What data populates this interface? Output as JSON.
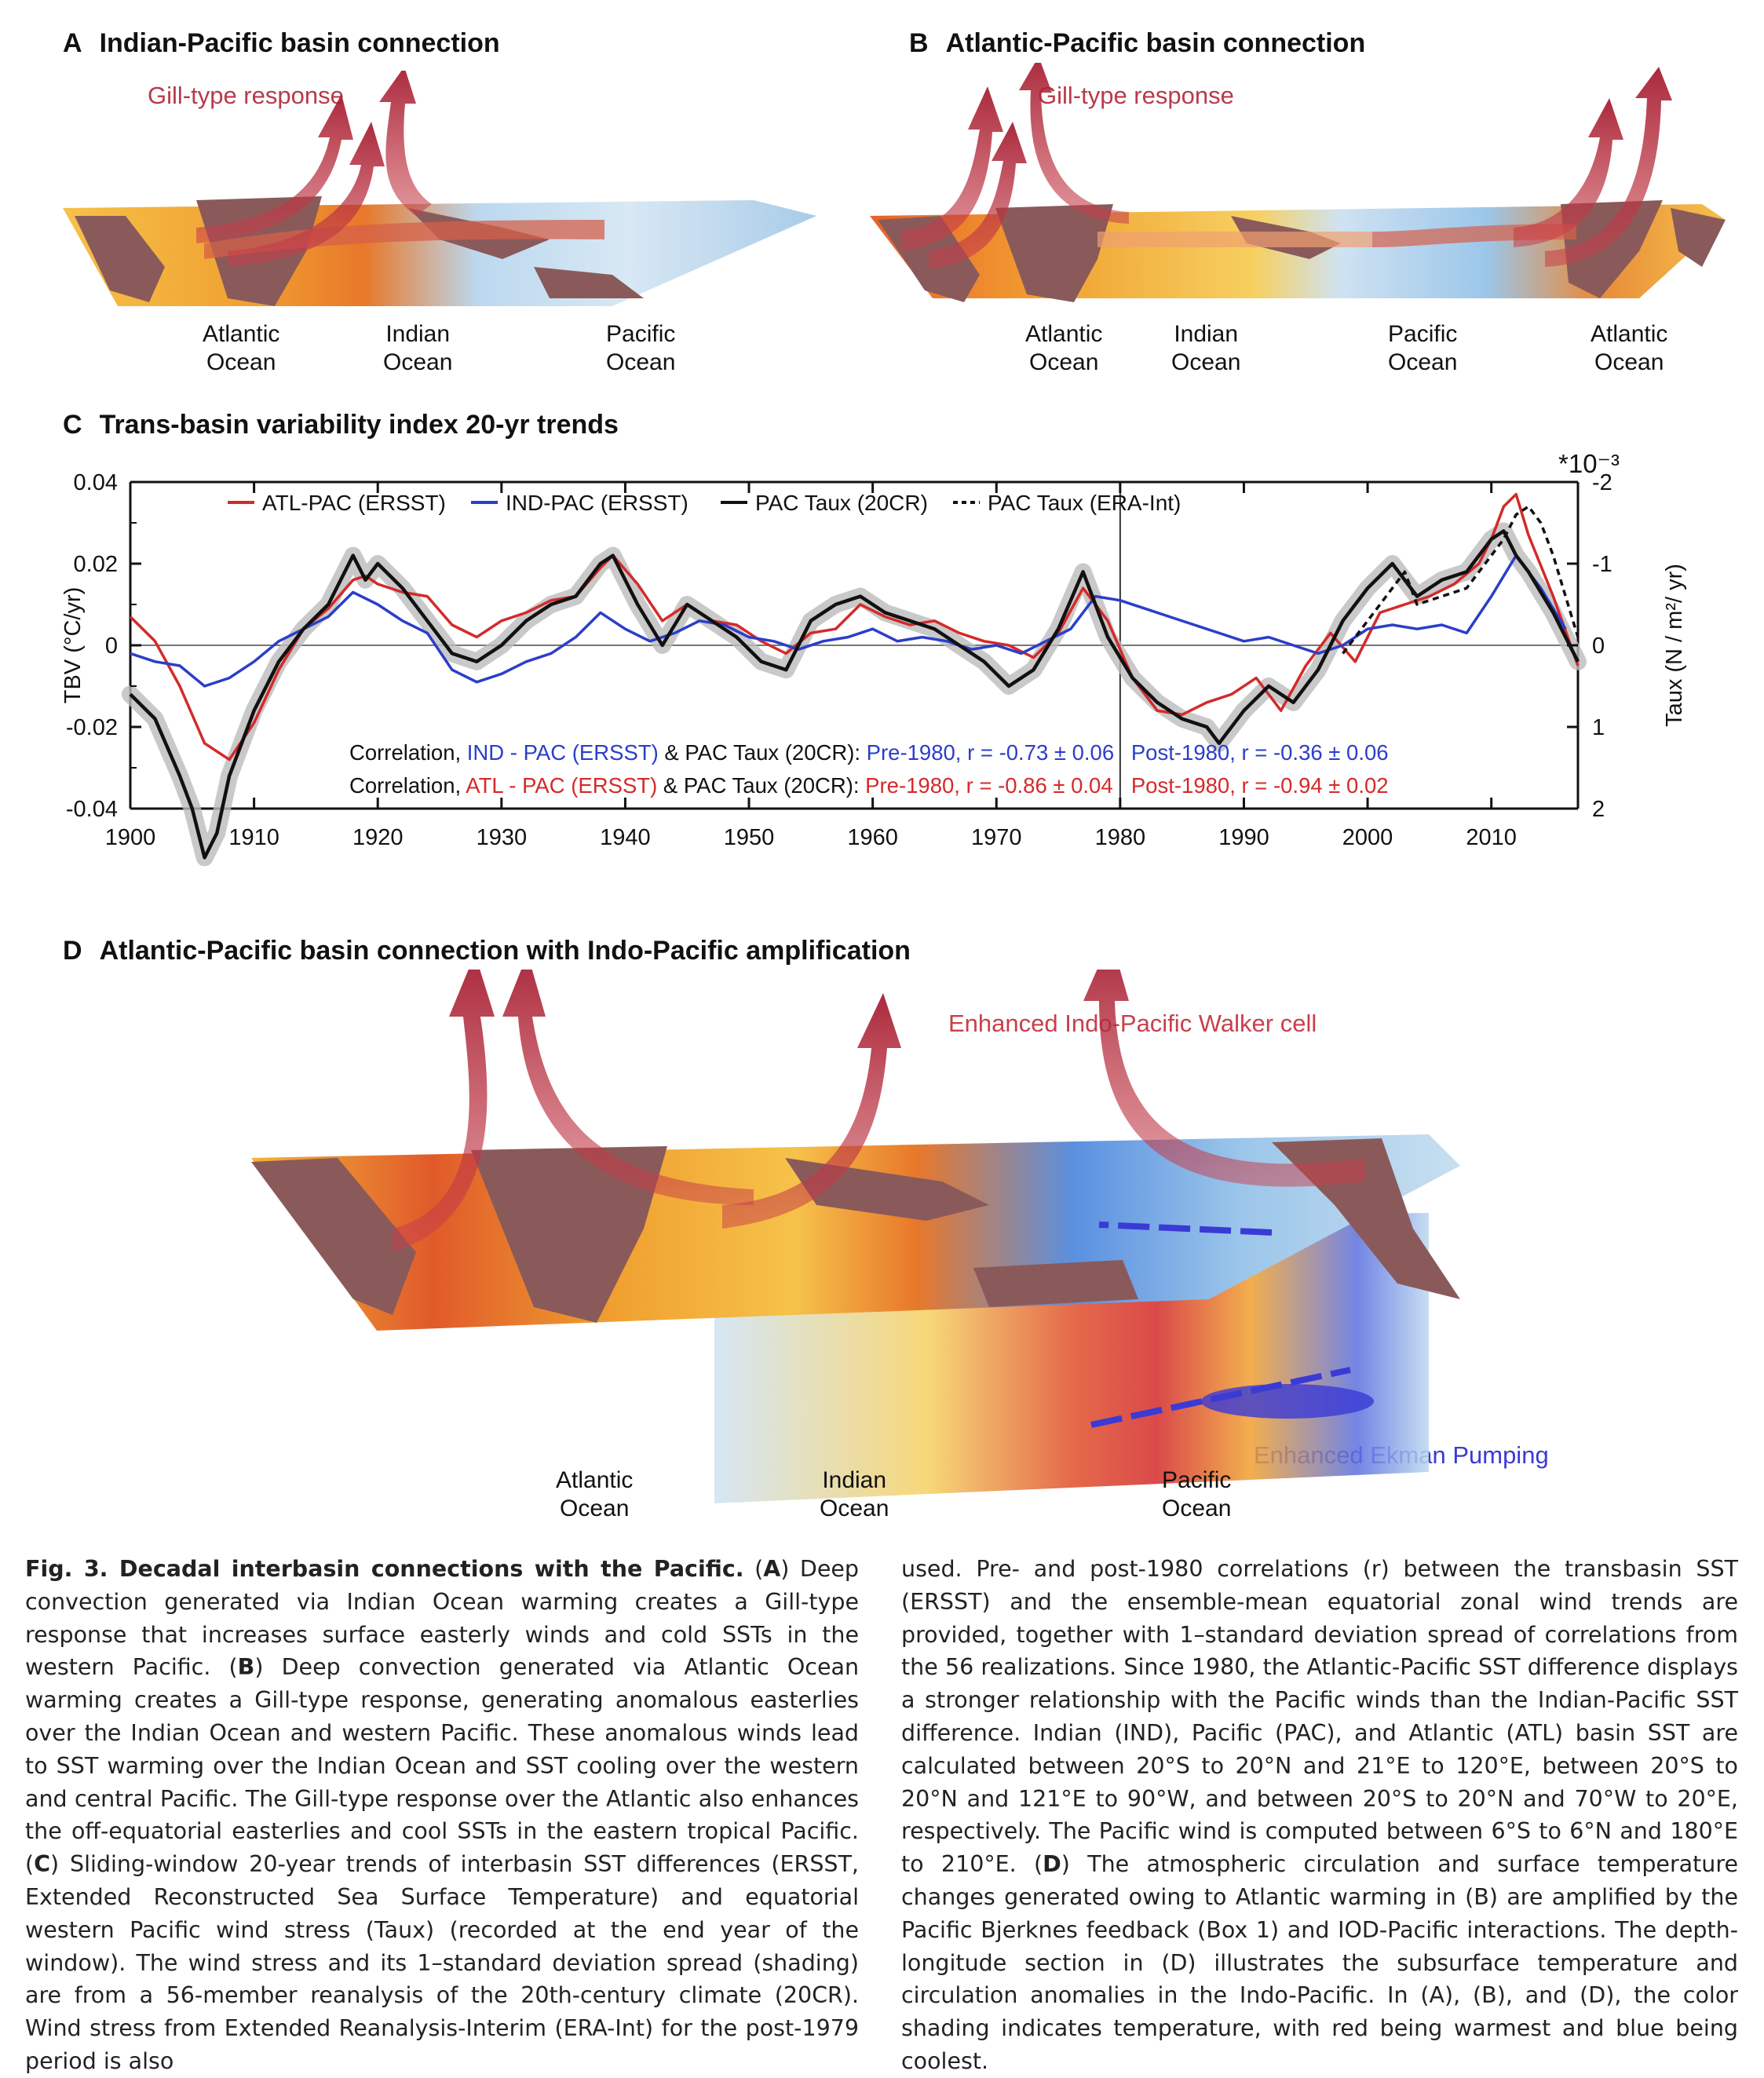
{
  "panels": {
    "A": {
      "letter": "A",
      "title": "Indian-Pacific basin connection",
      "gill": "Gill-type response",
      "oceans": [
        "Atlantic\nOcean",
        "Indian\nOcean",
        "Pacific\nOcean"
      ]
    },
    "B": {
      "letter": "B",
      "title": "Atlantic-Pacific basin connection",
      "gill": "Gill-type response",
      "oceans": [
        "Atlantic\nOcean",
        "Indian\nOcean",
        "Pacific\nOcean",
        "Atlantic\nOcean"
      ]
    },
    "C": {
      "letter": "C",
      "title": "Trans-basin variability index 20-yr trends"
    },
    "D": {
      "letter": "D",
      "title": "Atlantic-Pacific basin connection with Indo-Pacific amplification",
      "walker": "Enhanced Indo-Pacific Walker cell",
      "ekman": "Enhanced Ekman Pumping",
      "oceans": [
        "Atlantic\nOcean",
        "Indian\nOcean",
        "Pacific\nOcean"
      ]
    }
  },
  "chart_data": {
    "type": "line",
    "xlabel": "",
    "ylabel": "TBV (°C/yr)",
    "ylabel_right": "Taux (N / m²/ yr)",
    "right_scale_note": "*10⁻³",
    "xlim": [
      1900,
      2017
    ],
    "ylim": [
      -0.04,
      0.04
    ],
    "ylim_right": [
      2,
      -2
    ],
    "xticks": [
      1900,
      1910,
      1920,
      1930,
      1940,
      1950,
      1960,
      1970,
      1980,
      1990,
      2000,
      2010
    ],
    "yticks": [
      -0.04,
      -0.02,
      0,
      0.02,
      0.04
    ],
    "yticklabels": [
      "-0.04",
      "-0.02",
      "0",
      "0.02",
      "0.04"
    ],
    "yticks_right": [
      2,
      1,
      0,
      -1,
      -2
    ],
    "yticklabels_right": [
      "2",
      "1",
      "0",
      "-1",
      "-2"
    ],
    "vline": 1980,
    "legend": [
      "ATL-PAC (ERSST)",
      "IND-PAC (ERSST)",
      "PAC Taux (20CR)",
      "PAC Taux (ERA-Int)"
    ],
    "series": [
      {
        "name": "ATL-PAC (ERSST)",
        "color": "#d42a2a",
        "style": "solid",
        "x": [
          1900,
          1902,
          1904,
          1906,
          1907,
          1908,
          1910,
          1912,
          1914,
          1916,
          1918,
          1919,
          1920,
          1922,
          1924,
          1926,
          1928,
          1930,
          1932,
          1934,
          1936,
          1938,
          1939,
          1941,
          1943,
          1945,
          1947,
          1949,
          1951,
          1953,
          1955,
          1957,
          1959,
          1961,
          1963,
          1965,
          1967,
          1969,
          1971,
          1973,
          1975,
          1977,
          1979,
          1981,
          1983,
          1985,
          1987,
          1989,
          1991,
          1993,
          1995,
          1997,
          1999,
          2001,
          2003,
          2005,
          2007,
          2009,
          2010,
          2011,
          2012,
          2013,
          2015,
          2017
        ],
        "y": [
          0.007,
          0.001,
          -0.01,
          -0.024,
          -0.026,
          -0.028,
          -0.019,
          -0.006,
          0.004,
          0.009,
          0.016,
          0.017,
          0.015,
          0.013,
          0.012,
          0.005,
          0.002,
          0.006,
          0.008,
          0.011,
          0.012,
          0.019,
          0.022,
          0.015,
          0.006,
          0.01,
          0.006,
          0.005,
          0.001,
          -0.002,
          0.003,
          0.004,
          0.01,
          0.007,
          0.005,
          0.006,
          0.003,
          0.001,
          0.0,
          -0.003,
          0.003,
          0.014,
          0.006,
          -0.008,
          -0.016,
          -0.017,
          -0.014,
          -0.012,
          -0.008,
          -0.016,
          -0.005,
          0.003,
          -0.004,
          0.008,
          0.01,
          0.012,
          0.015,
          0.02,
          0.026,
          0.034,
          0.037,
          0.027,
          0.012,
          -0.005
        ]
      },
      {
        "name": "IND-PAC (ERSST)",
        "color": "#2b3ec9",
        "style": "solid",
        "x": [
          1900,
          1902,
          1904,
          1906,
          1908,
          1910,
          1912,
          1914,
          1916,
          1918,
          1920,
          1922,
          1924,
          1926,
          1928,
          1930,
          1932,
          1934,
          1936,
          1938,
          1940,
          1942,
          1944,
          1946,
          1948,
          1950,
          1952,
          1954,
          1956,
          1958,
          1960,
          1962,
          1964,
          1966,
          1968,
          1970,
          1972,
          1974,
          1976,
          1978,
          1980,
          1982,
          1984,
          1986,
          1988,
          1990,
          1992,
          1994,
          1996,
          1998,
          2000,
          2002,
          2004,
          2006,
          2008,
          2010,
          2012,
          2014,
          2016
        ],
        "y": [
          -0.002,
          -0.004,
          -0.005,
          -0.01,
          -0.008,
          -0.004,
          0.001,
          0.004,
          0.007,
          0.013,
          0.01,
          0.006,
          0.003,
          -0.006,
          -0.009,
          -0.007,
          -0.004,
          -0.002,
          0.002,
          0.008,
          0.004,
          0.001,
          0.003,
          0.006,
          0.005,
          0.002,
          0.001,
          -0.001,
          0.001,
          0.002,
          0.004,
          0.001,
          0.002,
          0.001,
          -0.001,
          0.0,
          -0.002,
          0.001,
          0.004,
          0.012,
          0.011,
          0.009,
          0.007,
          0.005,
          0.003,
          0.001,
          0.002,
          0.0,
          -0.002,
          0.0,
          0.004,
          0.005,
          0.004,
          0.005,
          0.003,
          0.012,
          0.022,
          0.014,
          0.004
        ]
      },
      {
        "name": "PAC Taux (20CR)",
        "color": "#111111",
        "style": "solid",
        "x": [
          1900,
          1902,
          1904,
          1905,
          1906,
          1907,
          1908,
          1910,
          1912,
          1914,
          1916,
          1918,
          1919,
          1920,
          1922,
          1924,
          1926,
          1928,
          1930,
          1932,
          1934,
          1936,
          1938,
          1939,
          1941,
          1943,
          1945,
          1947,
          1949,
          1951,
          1953,
          1955,
          1957,
          1959,
          1961,
          1963,
          1965,
          1967,
          1969,
          1971,
          1973,
          1975,
          1977,
          1979,
          1981,
          1983,
          1985,
          1987,
          1988,
          1990,
          1992,
          1994,
          1996,
          1998,
          2000,
          2002,
          2004,
          2006,
          2008,
          2010,
          2011,
          2012,
          2013,
          2015,
          2017
        ],
        "x_unused": [],
        "y": [
          0.6,
          0.9,
          1.6,
          2.0,
          2.6,
          2.3,
          1.6,
          0.8,
          0.2,
          -0.2,
          -0.5,
          -1.1,
          -0.8,
          -1.0,
          -0.7,
          -0.3,
          0.1,
          0.2,
          0.0,
          -0.3,
          -0.5,
          -0.6,
          -1.0,
          -1.1,
          -0.5,
          0.0,
          -0.5,
          -0.3,
          -0.1,
          0.2,
          0.3,
          -0.3,
          -0.5,
          -0.6,
          -0.4,
          -0.3,
          -0.2,
          0.0,
          0.2,
          0.5,
          0.3,
          -0.2,
          -0.9,
          -0.1,
          0.4,
          0.7,
          0.9,
          1.0,
          1.2,
          0.8,
          0.5,
          0.7,
          0.3,
          -0.3,
          -0.7,
          -1.0,
          -0.6,
          -0.8,
          -0.9,
          -1.3,
          -1.4,
          -1.1,
          -0.9,
          -0.4,
          0.2
        ]
      },
      {
        "name": "PAC Taux (ERA-Int)",
        "color": "#111111",
        "style": "dashed",
        "x": [
          1998,
          2000,
          2002,
          2003,
          2004,
          2006,
          2008,
          2010,
          2011,
          2012,
          2013,
          2014,
          2015,
          2016,
          2017
        ],
        "y": [
          0.1,
          -0.3,
          -0.7,
          -0.9,
          -0.5,
          -0.6,
          -0.7,
          -1.1,
          -1.3,
          -1.6,
          -1.7,
          -1.5,
          -1.1,
          -0.6,
          -0.1
        ]
      }
    ],
    "correlations": [
      {
        "prefix": "Correlation, ",
        "index": "IND - PAC (ERSST)",
        "mid": " & PAC Taux (20CR): ",
        "pre": "Pre-1980, r = -0.73 ± 0.06",
        "post": "Post-1980, r = -0.36 ± 0.06",
        "color": "#2b3ec9"
      },
      {
        "prefix": "Correlation, ",
        "index": "ATL - PAC (ERSST)",
        "mid": " & PAC Taux (20CR): ",
        "pre": "Pre-1980, r = -0.86 ± 0.04",
        "post": "Post-1980, r = -0.94 ± 0.02",
        "color": "#d42a2a"
      }
    ]
  },
  "caption": {
    "left_bold": "Fig. 3. Decadal interbasin connections with the Pacific.",
    "left": [
      {
        "t": " ("
      },
      {
        "b": "A"
      },
      {
        "t": ") Deep convection generated via Indian Ocean warming creates a Gill-type response that increases surface easterly winds and cold SSTs in the western Pacific. ("
      },
      {
        "b": "B"
      },
      {
        "t": ") Deep convection generated via Atlantic Ocean warming creates a Gill-type response, generating anomalous easterlies over the Indian Ocean and western Pacific. These anomalous winds lead to SST warming over the Indian Ocean and SST cooling over the western and central Pacific. The Gill-type response over the Atlantic also enhances the off-equatorial easterlies and cool SSTs in the eastern tropical Pacific. ("
      },
      {
        "b": "C"
      },
      {
        "t": ") Sliding-window 20-year trends of interbasin SST differences (ERSST, Extended Reconstructed Sea Surface Temperature) and equatorial western Pacific wind stress (Taux) (recorded at the end year of the window). The wind stress and its 1–standard deviation spread (shading) are from a 56-member reanalysis of the 20th-century climate (20CR). Wind stress from Extended Reanalysis-Interim (ERA-Int) for the post-1979 period is also"
      }
    ],
    "right": [
      {
        "t": "used. Pre- and post-1980 correlations (r) between the transbasin SST (ERSST) and the ensemble-mean equatorial zonal wind trends are provided, together with 1–standard deviation spread of correlations from the 56 realizations. Since 1980, the Atlantic-Pacific SST difference displays a stronger relationship with the Pacific winds than the Indian-Pacific SST difference. Indian (IND), Pacific (PAC), and Atlantic (ATL) basin SST are calculated between 20°S to 20°N and 21°E to 120°E, between 20°S to 20°N and 121°E to 90°W, and between 20°S to 20°N and 70°W to 20°E, respectively. The Pacific wind is computed between 6°S to 6°N and 180°E to 210°E. ("
      },
      {
        "b": "D"
      },
      {
        "t": ") The atmospheric circulation and surface temperature changes generated owing to Atlantic warming in (B) are amplified by the Pacific Bjerknes feedback (Box 1) and IOD-Pacific interactions. The depth-longitude section in (D) illustrates the subsurface temperature and circulation anomalies in the Indo-Pacific. In (A), (B), and (D), the color shading indicates temperature, with red being warmest and blue being coolest."
      }
    ]
  },
  "colors": {
    "arrow_red": "#b8283a",
    "warm": "#f4b43a",
    "hot": "#e05a2a",
    "cool": "#9cc9ea",
    "land": "#8a5a5a",
    "ekman_blue": "#3a3ad6"
  }
}
